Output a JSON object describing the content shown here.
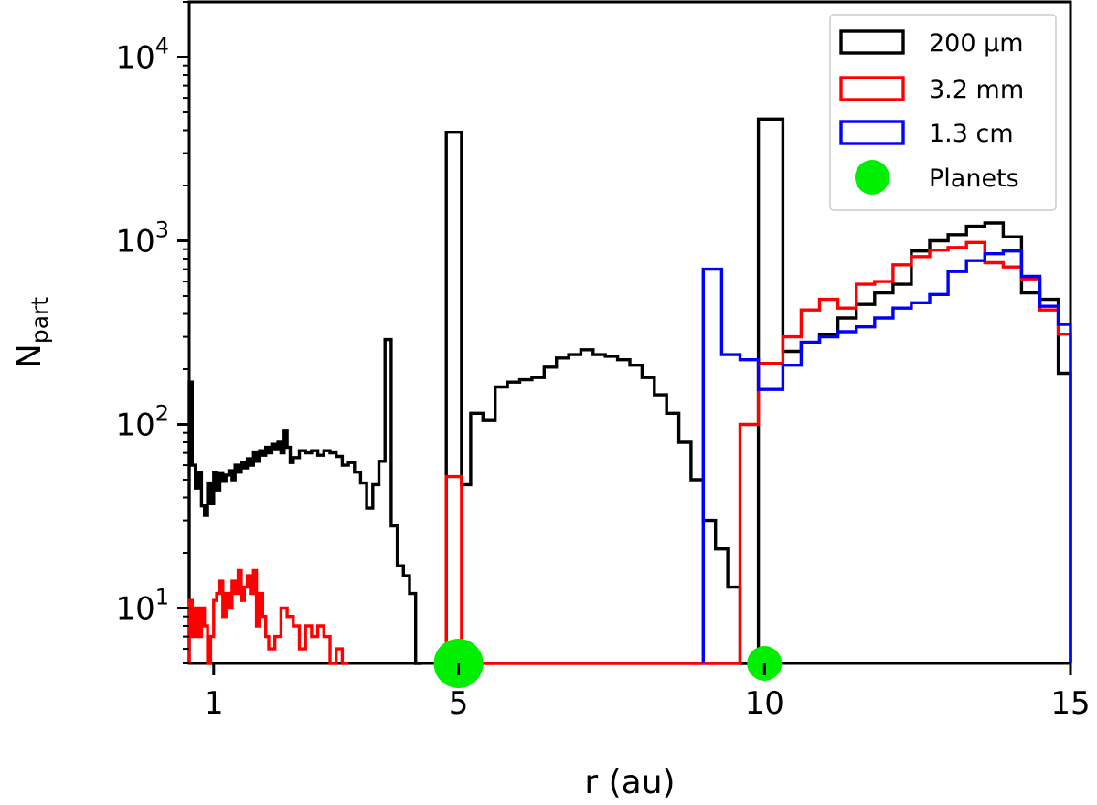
{
  "chart_data": {
    "type": "histogram-step",
    "xlabel": "r (au)",
    "ylabel_main": "N",
    "ylabel_sub": "part",
    "xlim": [
      0.6,
      15.0
    ],
    "ylim": [
      5,
      20000
    ],
    "yscale": "log",
    "x_ticks": [
      1,
      5,
      10,
      15
    ],
    "x_tick_labels": [
      "1",
      "5",
      "10",
      "15"
    ],
    "y_ticks": [
      10,
      100,
      1000,
      10000
    ],
    "y_tick_labels": [
      {
        "base": "10",
        "exp": "1"
      },
      {
        "base": "10",
        "exp": "2"
      },
      {
        "base": "10",
        "exp": "3"
      },
      {
        "base": "10",
        "exp": "4"
      }
    ],
    "legend_position": "top-right",
    "legend": [
      {
        "label": "200 μm",
        "color": "#000000",
        "kind": "box"
      },
      {
        "label": "3.2 mm",
        "color": "#ff0000",
        "kind": "box"
      },
      {
        "label": "1.3 cm",
        "color": "#0000ff",
        "kind": "box"
      },
      {
        "label": "Planets",
        "color": "#00ee00",
        "kind": "dot"
      }
    ],
    "series": [
      {
        "name": "200 μm",
        "color": "#000000",
        "points": [
          [
            0.6,
            170
          ],
          [
            0.65,
            60
          ],
          [
            0.7,
            45
          ],
          [
            0.75,
            55
          ],
          [
            0.8,
            36
          ],
          [
            0.85,
            32
          ],
          [
            0.9,
            48
          ],
          [
            0.95,
            37
          ],
          [
            1.0,
            55
          ],
          [
            1.05,
            44
          ],
          [
            1.1,
            54
          ],
          [
            1.15,
            49
          ],
          [
            1.2,
            53
          ],
          [
            1.25,
            56
          ],
          [
            1.3,
            50
          ],
          [
            1.35,
            60
          ],
          [
            1.4,
            55
          ],
          [
            1.45,
            62
          ],
          [
            1.5,
            58
          ],
          [
            1.55,
            65
          ],
          [
            1.6,
            60
          ],
          [
            1.65,
            70
          ],
          [
            1.7,
            63
          ],
          [
            1.75,
            72
          ],
          [
            1.8,
            68
          ],
          [
            1.85,
            75
          ],
          [
            1.9,
            70
          ],
          [
            1.95,
            78
          ],
          [
            2.0,
            73
          ],
          [
            2.05,
            80
          ],
          [
            2.1,
            70
          ],
          [
            2.15,
            92
          ],
          [
            2.2,
            75
          ],
          [
            2.25,
            62
          ],
          [
            2.3,
            66
          ],
          [
            2.4,
            72
          ],
          [
            2.5,
            70
          ],
          [
            2.6,
            72
          ],
          [
            2.7,
            68
          ],
          [
            2.8,
            72
          ],
          [
            2.9,
            70
          ],
          [
            3.0,
            67
          ],
          [
            3.1,
            60
          ],
          [
            3.2,
            62
          ],
          [
            3.3,
            55
          ],
          [
            3.4,
            48
          ],
          [
            3.5,
            35
          ],
          [
            3.6,
            47
          ],
          [
            3.7,
            63
          ],
          [
            3.8,
            290
          ],
          [
            3.9,
            28
          ],
          [
            4.0,
            17
          ],
          [
            4.1,
            15
          ],
          [
            4.2,
            12
          ],
          [
            4.3,
            5
          ]
        ],
        "end": 4.4
      },
      {
        "name": "200 μm",
        "color": "#000000",
        "points": [
          [
            4.8,
            3900
          ],
          [
            5.05,
            47
          ],
          [
            5.2,
            115
          ],
          [
            5.4,
            105
          ],
          [
            5.6,
            160
          ],
          [
            5.8,
            170
          ],
          [
            6.0,
            175
          ],
          [
            6.2,
            180
          ],
          [
            6.4,
            205
          ],
          [
            6.6,
            230
          ],
          [
            6.8,
            240
          ],
          [
            7.0,
            255
          ],
          [
            7.2,
            240
          ],
          [
            7.4,
            235
          ],
          [
            7.6,
            225
          ],
          [
            7.8,
            210
          ],
          [
            8.0,
            180
          ],
          [
            8.2,
            145
          ],
          [
            8.4,
            115
          ],
          [
            8.6,
            80
          ],
          [
            8.8,
            50
          ],
          [
            9.0,
            30
          ],
          [
            9.2,
            21
          ],
          [
            9.4,
            13
          ],
          [
            9.6,
            5
          ],
          [
            9.9,
            4600
          ],
          [
            10.3,
            250
          ],
          [
            10.6,
            280
          ],
          [
            10.9,
            310
          ],
          [
            11.2,
            380
          ],
          [
            11.5,
            450
          ],
          [
            11.8,
            520
          ],
          [
            12.1,
            580
          ],
          [
            12.4,
            880
          ],
          [
            12.7,
            1000
          ],
          [
            13.0,
            1080
          ],
          [
            13.3,
            1200
          ],
          [
            13.6,
            1250
          ],
          [
            13.9,
            1050
          ],
          [
            14.2,
            520
          ],
          [
            14.5,
            480
          ],
          [
            14.8,
            190
          ]
        ],
        "end": 15.0
      },
      {
        "name": "3.2 mm",
        "color": "#ff0000",
        "points": [
          [
            0.6,
            11
          ],
          [
            0.65,
            7
          ],
          [
            0.7,
            10
          ],
          [
            0.75,
            7
          ],
          [
            0.8,
            10
          ],
          [
            0.85,
            8
          ],
          [
            0.9,
            5
          ],
          [
            0.95,
            7
          ],
          [
            1.0,
            11
          ],
          [
            1.05,
            12
          ],
          [
            1.1,
            14
          ],
          [
            1.15,
            9
          ],
          [
            1.2,
            12
          ],
          [
            1.25,
            10
          ],
          [
            1.3,
            14
          ],
          [
            1.35,
            12
          ],
          [
            1.4,
            16
          ],
          [
            1.45,
            11
          ],
          [
            1.5,
            13
          ],
          [
            1.55,
            15
          ],
          [
            1.6,
            12
          ],
          [
            1.65,
            16
          ],
          [
            1.7,
            8
          ],
          [
            1.75,
            12
          ],
          [
            1.8,
            9
          ],
          [
            1.85,
            7
          ],
          [
            1.9,
            6
          ],
          [
            2.0,
            7
          ],
          [
            2.1,
            10
          ],
          [
            2.2,
            9
          ],
          [
            2.3,
            8
          ],
          [
            2.4,
            6
          ],
          [
            2.5,
            8
          ],
          [
            2.6,
            7
          ],
          [
            2.7,
            8
          ],
          [
            2.8,
            7
          ],
          [
            2.9,
            5
          ],
          [
            3.0,
            6
          ],
          [
            3.1,
            5
          ],
          [
            3.2,
            5
          ]
        ],
        "end": 3.2
      },
      {
        "name": "3.2 mm",
        "color": "#ff0000",
        "points": [
          [
            4.8,
            52
          ],
          [
            5.05,
            5
          ],
          [
            9.6,
            100
          ],
          [
            9.9,
            215
          ],
          [
            10.3,
            300
          ],
          [
            10.6,
            420
          ],
          [
            10.9,
            480
          ],
          [
            11.2,
            430
          ],
          [
            11.5,
            580
          ],
          [
            11.8,
            600
          ],
          [
            12.1,
            740
          ],
          [
            12.4,
            820
          ],
          [
            12.7,
            890
          ],
          [
            13.0,
            920
          ],
          [
            13.3,
            980
          ],
          [
            13.6,
            760
          ],
          [
            13.9,
            720
          ],
          [
            14.2,
            620
          ],
          [
            14.5,
            420
          ],
          [
            14.8,
            310
          ]
        ],
        "end": 15.0
      },
      {
        "name": "1.3 cm",
        "color": "#0000ff",
        "points": [
          [
            9.0,
            700
          ],
          [
            9.3,
            240
          ],
          [
            9.6,
            225
          ],
          [
            9.9,
            155
          ],
          [
            10.3,
            210
          ],
          [
            10.6,
            280
          ],
          [
            10.9,
            300
          ],
          [
            11.2,
            320
          ],
          [
            11.5,
            340
          ],
          [
            11.8,
            380
          ],
          [
            12.1,
            430
          ],
          [
            12.4,
            460
          ],
          [
            12.7,
            510
          ],
          [
            13.0,
            680
          ],
          [
            13.3,
            780
          ],
          [
            13.6,
            850
          ],
          [
            13.9,
            880
          ],
          [
            14.2,
            640
          ],
          [
            14.5,
            440
          ],
          [
            14.8,
            350
          ]
        ],
        "end": 15.0
      }
    ],
    "planets": [
      {
        "x": 5.0,
        "size": "large",
        "color": "#00ee00"
      },
      {
        "x": 10.0,
        "size": "small",
        "color": "#00ee00"
      }
    ]
  }
}
